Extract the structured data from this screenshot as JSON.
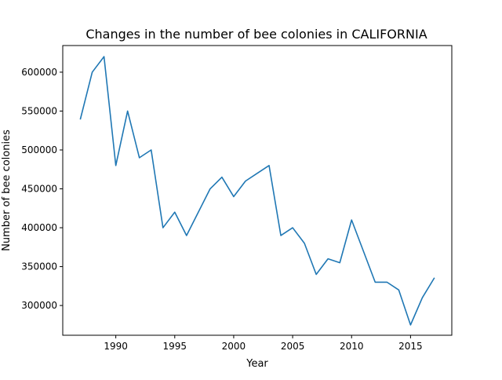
{
  "chart_data": {
    "type": "line",
    "title": "Changes in the number of bee colonies in CALIFORNIA",
    "xlabel": "Year",
    "ylabel": "Number of bee colonies",
    "xlim": [
      1985.5,
      2018.5
    ],
    "ylim": [
      261750,
      634250
    ],
    "x_ticks": [
      1990,
      1995,
      2000,
      2005,
      2010,
      2015
    ],
    "y_ticks": [
      300000,
      350000,
      400000,
      450000,
      500000,
      550000,
      600000
    ],
    "grid": false,
    "series": [
      {
        "color": "#1f77b4",
        "x": [
          1987,
          1988,
          1989,
          1990,
          1991,
          1992,
          1993,
          1994,
          1995,
          1996,
          1997,
          1998,
          1999,
          2000,
          2001,
          2002,
          2003,
          2004,
          2005,
          2006,
          2007,
          2008,
          2009,
          2010,
          2011,
          2012,
          2013,
          2014,
          2015,
          2016,
          2017
        ],
        "y": [
          540000,
          600000,
          620000,
          480000,
          550000,
          490000,
          500000,
          400000,
          420000,
          390000,
          420000,
          450000,
          465000,
          440000,
          460000,
          470000,
          480000,
          390000,
          400000,
          380000,
          340000,
          360000,
          355000,
          410000,
          370000,
          330000,
          330000,
          320000,
          275000,
          310000,
          335000
        ]
      }
    ]
  }
}
